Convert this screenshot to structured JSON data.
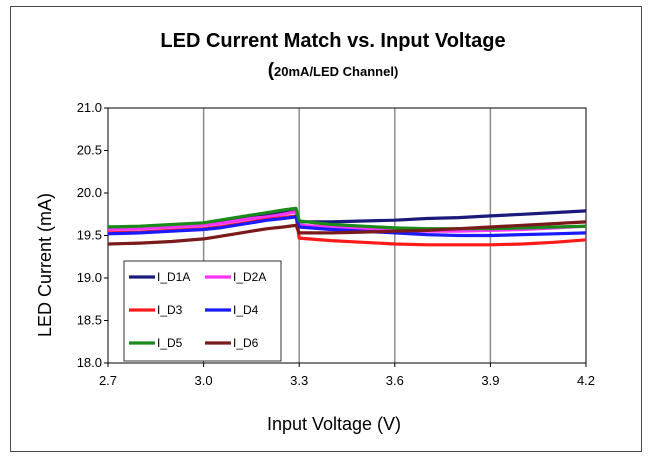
{
  "chart_data": {
    "type": "line",
    "title": "LED Current Match vs. Input Voltage",
    "subtitle_open": "(",
    "subtitle_text": "20mA/LED Channel)",
    "xlabel": "Input Voltage (V)",
    "ylabel": "LED Current (mA)",
    "xlim": [
      2.7,
      4.2
    ],
    "ylim": [
      18.0,
      21.0
    ],
    "xticks": [
      "2.7",
      "3.0",
      "3.3",
      "3.6",
      "3.9",
      "4.2"
    ],
    "yticks": [
      "18.0",
      "18.5",
      "19.0",
      "19.5",
      "20.0",
      "20.5",
      "21.0"
    ],
    "grid": "vertical-major",
    "legend_position": "lower-left",
    "series": [
      {
        "name": "I_D1A",
        "color": "#1a1a7a",
        "points": [
          [
            2.7,
            19.6
          ],
          [
            2.8,
            19.6
          ],
          [
            2.9,
            19.62
          ],
          [
            3.0,
            19.64
          ],
          [
            3.05,
            19.66
          ],
          [
            3.1,
            19.69
          ],
          [
            3.15,
            19.72
          ],
          [
            3.2,
            19.75
          ],
          [
            3.25,
            19.78
          ],
          [
            3.29,
            19.8
          ],
          [
            3.3,
            19.66
          ],
          [
            3.4,
            19.66
          ],
          [
            3.5,
            19.67
          ],
          [
            3.6,
            19.68
          ],
          [
            3.7,
            19.7
          ],
          [
            3.8,
            19.71
          ],
          [
            3.9,
            19.73
          ],
          [
            4.0,
            19.75
          ],
          [
            4.1,
            19.77
          ],
          [
            4.2,
            19.79
          ]
        ]
      },
      {
        "name": "I_D2A",
        "color": "#ff33ff",
        "points": [
          [
            2.7,
            19.57
          ],
          [
            2.8,
            19.58
          ],
          [
            2.9,
            19.6
          ],
          [
            3.0,
            19.62
          ],
          [
            3.05,
            19.64
          ],
          [
            3.1,
            19.67
          ],
          [
            3.15,
            19.7
          ],
          [
            3.2,
            19.72
          ],
          [
            3.25,
            19.75
          ],
          [
            3.29,
            19.78
          ],
          [
            3.3,
            19.62
          ],
          [
            3.4,
            19.6
          ],
          [
            3.5,
            19.58
          ],
          [
            3.6,
            19.56
          ],
          [
            3.7,
            19.55
          ],
          [
            3.8,
            19.55
          ],
          [
            3.9,
            19.56
          ],
          [
            4.0,
            19.57
          ],
          [
            4.1,
            19.59
          ],
          [
            4.2,
            19.61
          ]
        ]
      },
      {
        "name": "I_D3",
        "color": "#ff1a1a",
        "points": [
          [
            2.7,
            19.53
          ],
          [
            2.8,
            19.54
          ],
          [
            2.9,
            19.56
          ],
          [
            3.0,
            19.58
          ],
          [
            3.05,
            19.6
          ],
          [
            3.1,
            19.63
          ],
          [
            3.15,
            19.66
          ],
          [
            3.2,
            19.69
          ],
          [
            3.25,
            19.71
          ],
          [
            3.29,
            19.73
          ],
          [
            3.3,
            19.47
          ],
          [
            3.4,
            19.44
          ],
          [
            3.5,
            19.42
          ],
          [
            3.6,
            19.4
          ],
          [
            3.7,
            19.39
          ],
          [
            3.8,
            19.39
          ],
          [
            3.9,
            19.39
          ],
          [
            4.0,
            19.4
          ],
          [
            4.1,
            19.42
          ],
          [
            4.2,
            19.45
          ]
        ]
      },
      {
        "name": "I_D4",
        "color": "#1a1aff",
        "points": [
          [
            2.7,
            19.52
          ],
          [
            2.8,
            19.53
          ],
          [
            2.9,
            19.55
          ],
          [
            3.0,
            19.57
          ],
          [
            3.05,
            19.59
          ],
          [
            3.1,
            19.62
          ],
          [
            3.15,
            19.65
          ],
          [
            3.2,
            19.68
          ],
          [
            3.25,
            19.7
          ],
          [
            3.29,
            19.72
          ],
          [
            3.3,
            19.6
          ],
          [
            3.4,
            19.57
          ],
          [
            3.5,
            19.55
          ],
          [
            3.6,
            19.53
          ],
          [
            3.7,
            19.51
          ],
          [
            3.8,
            19.5
          ],
          [
            3.9,
            19.5
          ],
          [
            4.0,
            19.51
          ],
          [
            4.1,
            19.52
          ],
          [
            4.2,
            19.53
          ]
        ]
      },
      {
        "name": "I_D5",
        "color": "#1a8a1a",
        "points": [
          [
            2.7,
            19.6
          ],
          [
            2.8,
            19.61
          ],
          [
            2.9,
            19.63
          ],
          [
            3.0,
            19.65
          ],
          [
            3.05,
            19.68
          ],
          [
            3.1,
            19.71
          ],
          [
            3.15,
            19.74
          ],
          [
            3.2,
            19.77
          ],
          [
            3.25,
            19.8
          ],
          [
            3.29,
            19.82
          ],
          [
            3.3,
            19.67
          ],
          [
            3.4,
            19.63
          ],
          [
            3.5,
            19.61
          ],
          [
            3.6,
            19.59
          ],
          [
            3.7,
            19.58
          ],
          [
            3.8,
            19.58
          ],
          [
            3.9,
            19.58
          ],
          [
            4.0,
            19.59
          ],
          [
            4.1,
            19.6
          ],
          [
            4.2,
            19.61
          ]
        ]
      },
      {
        "name": "I_D6",
        "color": "#7a1a1a",
        "points": [
          [
            2.7,
            19.4
          ],
          [
            2.8,
            19.41
          ],
          [
            2.9,
            19.43
          ],
          [
            3.0,
            19.46
          ],
          [
            3.05,
            19.49
          ],
          [
            3.1,
            19.52
          ],
          [
            3.15,
            19.55
          ],
          [
            3.2,
            19.58
          ],
          [
            3.25,
            19.6
          ],
          [
            3.29,
            19.62
          ],
          [
            3.3,
            19.53
          ],
          [
            3.4,
            19.53
          ],
          [
            3.5,
            19.54
          ],
          [
            3.6,
            19.55
          ],
          [
            3.7,
            19.56
          ],
          [
            3.8,
            19.58
          ],
          [
            3.9,
            19.6
          ],
          [
            4.0,
            19.62
          ],
          [
            4.1,
            19.64
          ],
          [
            4.2,
            19.66
          ]
        ]
      }
    ]
  }
}
